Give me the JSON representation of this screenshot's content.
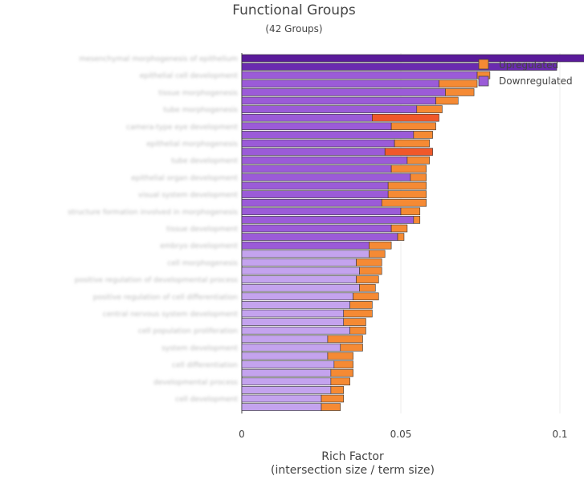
{
  "chart_data": {
    "type": "bar",
    "orientation": "horizontal",
    "stacked": true,
    "title": "Functional Groups",
    "subtitle": "(42 Groups)",
    "xlabel_line1": "Rich Factor",
    "xlabel_line2": "(intersection size / term size)",
    "xlim": [
      0,
      0.135
    ],
    "xticks": [
      "0",
      "0.05",
      "0.1"
    ],
    "xtick_values": [
      0,
      0.05,
      0.1
    ],
    "grid": true,
    "legend": {
      "position": "top-right",
      "entries": [
        "Upregulated",
        "Downregulated"
      ]
    },
    "colors": {
      "up": "#f58a34",
      "up_alt": "#f0582a",
      "down_dark": "#5a1a9a",
      "down": "#9b5bd8",
      "down_light": "#c4a3ee",
      "grid": "#eeeeee"
    },
    "categories": [
      "mesenchymal morphogenesis of epithelium",
      "",
      "epithelial cell development",
      "",
      "tissue morphogenesis",
      "",
      "tube morphogenesis",
      "",
      "camera-type eye development",
      "",
      "epithelial morphogenesis",
      "",
      "tube development",
      "",
      "epithelial organ development",
      "",
      "visual system development",
      "",
      "structure formation involved in morphogenesis",
      "",
      "tissue development",
      "",
      "embryo development",
      "",
      "cell morphogenesis",
      "",
      "positive regulation of developmental process",
      "",
      "positive regulation of cell differentiation",
      "",
      "central nervous system development",
      "",
      "cell population proliferation",
      "",
      "system development",
      "",
      "cell differentiation",
      "",
      "developmental process",
      "",
      "cell development",
      ""
    ],
    "series": [
      {
        "name": "Downregulated",
        "values": [
          0.121,
          0.099,
          0.074,
          0.062,
          0.064,
          0.061,
          0.055,
          0.041,
          0.047,
          0.054,
          0.048,
          0.045,
          0.052,
          0.047,
          0.053,
          0.046,
          0.046,
          0.044,
          0.05,
          0.054,
          0.047,
          0.049,
          0.04,
          0.04,
          0.036,
          0.037,
          0.036,
          0.037,
          0.035,
          0.034,
          0.032,
          0.032,
          0.034,
          0.027,
          0.031,
          0.027,
          0.029,
          0.028,
          0.028,
          0.028,
          0.025,
          0.025
        ]
      },
      {
        "name": "Upregulated",
        "values": [
          0.011,
          0.0,
          0.004,
          0.012,
          0.009,
          0.007,
          0.008,
          0.021,
          0.014,
          0.006,
          0.011,
          0.015,
          0.007,
          0.011,
          0.005,
          0.012,
          0.012,
          0.014,
          0.006,
          0.002,
          0.005,
          0.002,
          0.007,
          0.005,
          0.008,
          0.007,
          0.007,
          0.005,
          0.008,
          0.007,
          0.009,
          0.007,
          0.005,
          0.011,
          0.007,
          0.008,
          0.006,
          0.007,
          0.006,
          0.004,
          0.007,
          0.006
        ]
      }
    ]
  }
}
